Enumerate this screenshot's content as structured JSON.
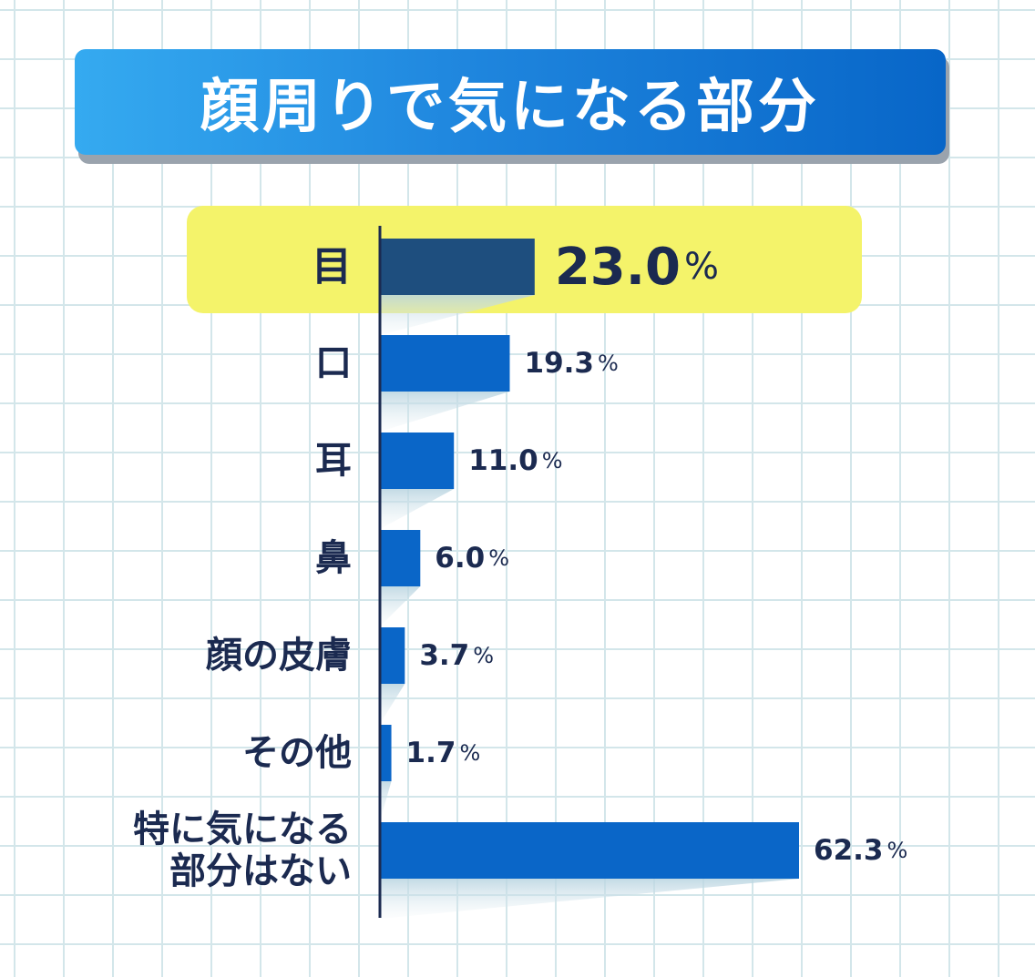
{
  "chart_data": {
    "type": "bar",
    "orientation": "horizontal",
    "title": "顔周りで気になる部分",
    "unit": "%",
    "categories": [
      "目",
      "口",
      "耳",
      "鼻",
      "顔の皮膚",
      "その他",
      "特に気になる部分はない"
    ],
    "category_lines": [
      [
        "目"
      ],
      [
        "口"
      ],
      [
        "耳"
      ],
      [
        "鼻"
      ],
      [
        "顔の皮膚"
      ],
      [
        "その他"
      ],
      [
        "特に気になる",
        "部分はない"
      ]
    ],
    "values": [
      23.0,
      19.3,
      11.0,
      6.0,
      3.7,
      1.7,
      62.3
    ],
    "value_labels": [
      "23.0",
      "19.3",
      "11.0",
      "6.0",
      "3.7",
      "1.7",
      "62.3"
    ],
    "highlight_index": 0,
    "xlim": [
      0,
      62.3
    ],
    "grid": true,
    "colors": {
      "bar": "#0a66c8",
      "bar_highlight": "#1e4e7e",
      "text": "#1b2a50",
      "highlight_bg": "#f4f36a",
      "title_start": "#35aaf0",
      "title_end": "#0866c8"
    }
  }
}
